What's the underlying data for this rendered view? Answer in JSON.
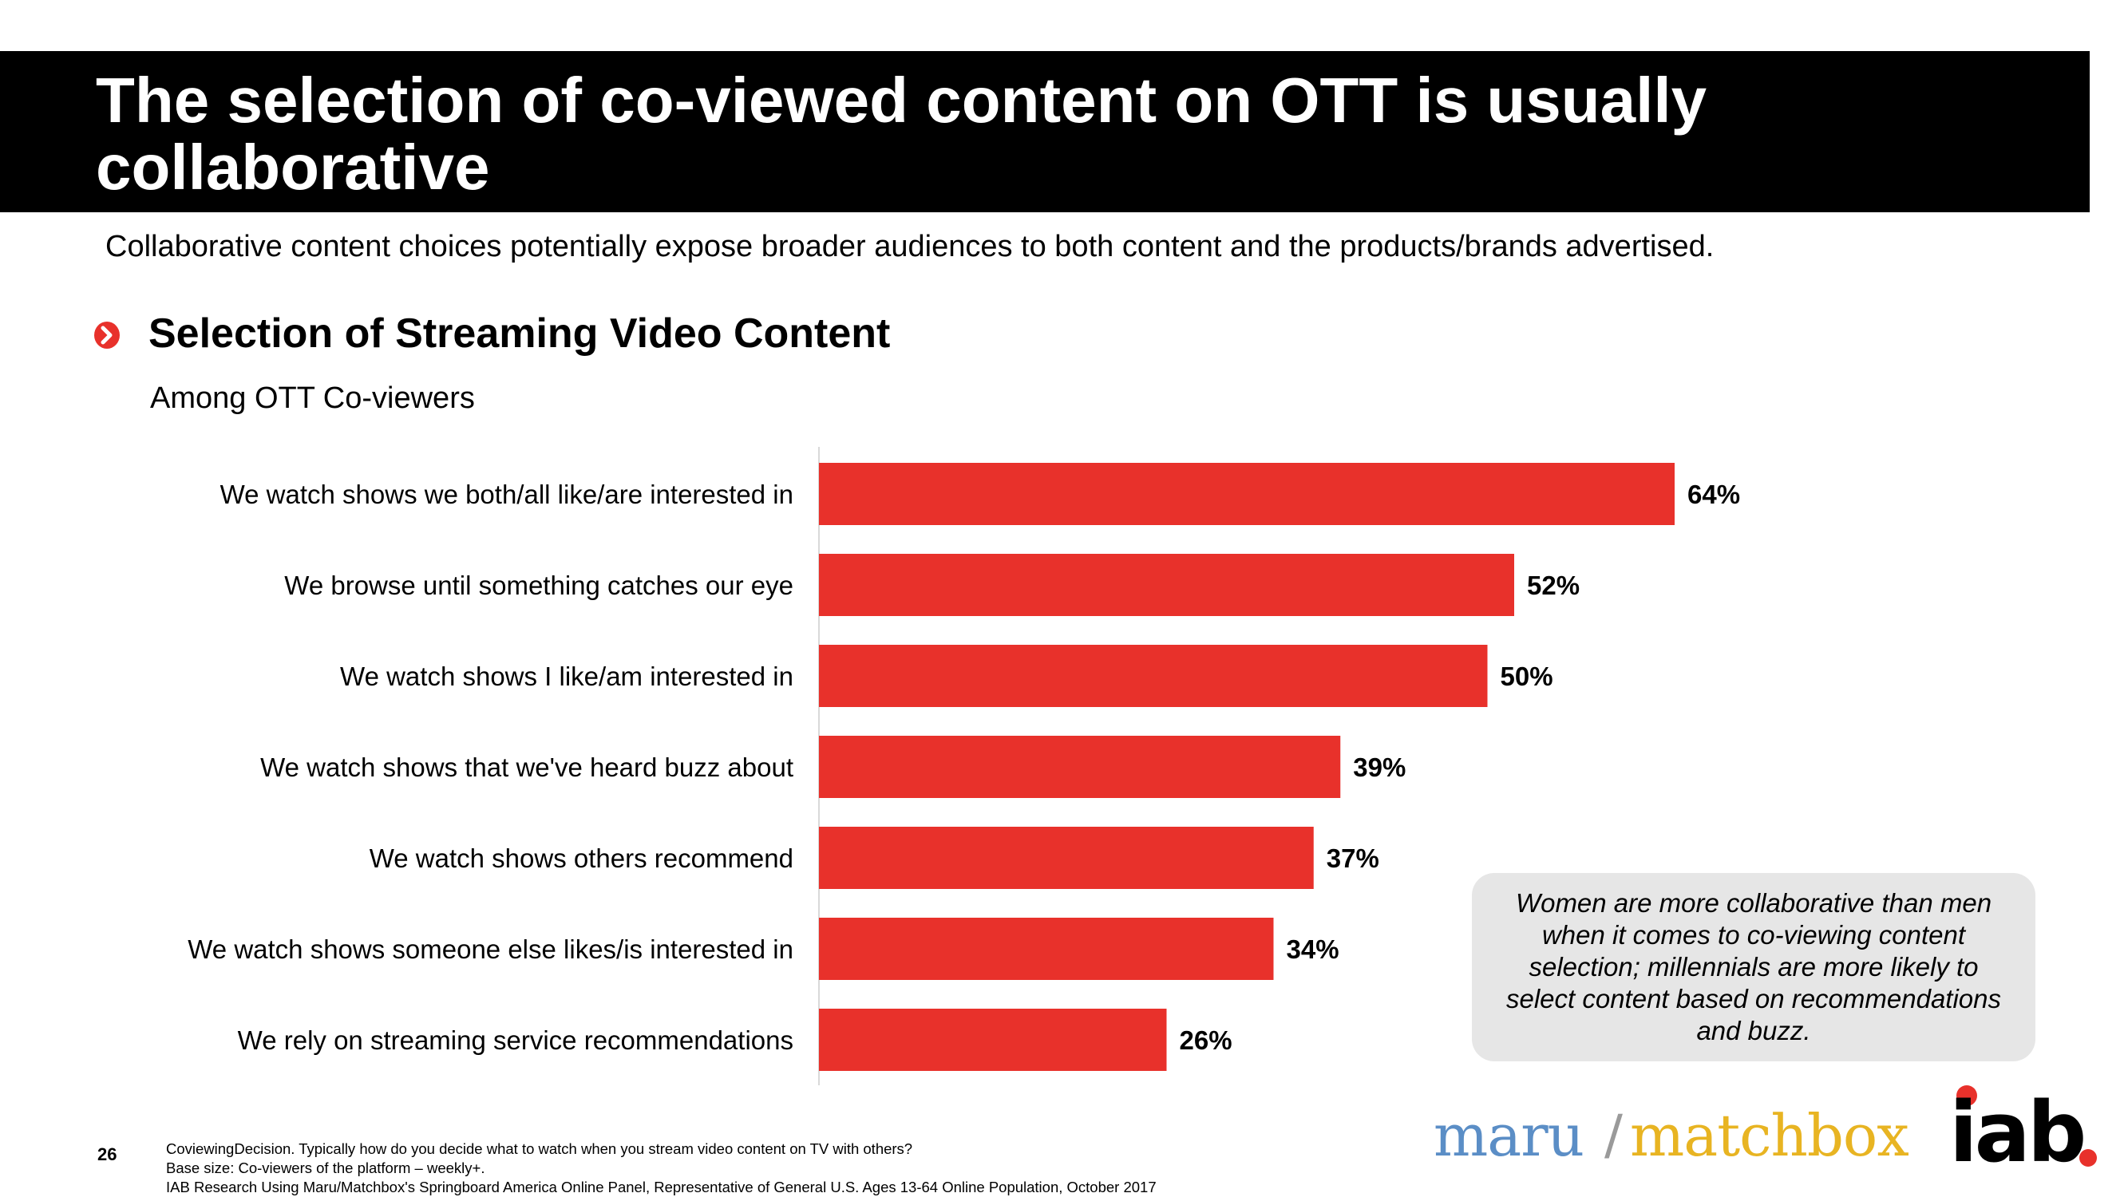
{
  "header": {
    "title": "The selection of co-viewed content on OTT is usually collaborative",
    "subtitle": "Collaborative content choices potentially expose broader audiences to both content and the products/brands advertised."
  },
  "section": {
    "icon": "chevron-right-icon",
    "title": "Selection of Streaming Video Content",
    "subtitle": "Among OTT Co-viewers"
  },
  "chart_data": {
    "type": "bar",
    "orientation": "horizontal",
    "title": "Selection of Streaming Video Content",
    "subtitle": "Among OTT Co-viewers",
    "categories": [
      "We watch shows we both/all like/are interested in",
      "We browse until something catches our eye",
      "We watch shows I like/am interested in",
      "We watch shows that we've heard buzz about",
      "We watch shows others recommend",
      "We watch shows someone else likes/is interested in",
      "We rely on streaming service recommendations"
    ],
    "values": [
      64,
      52,
      50,
      39,
      37,
      34,
      26
    ],
    "value_labels": [
      "64%",
      "52%",
      "50%",
      "39%",
      "37%",
      "34%",
      "26%"
    ],
    "unit": "%",
    "xlim": [
      0,
      100
    ],
    "bar_color": "#e8312b",
    "grid": false,
    "xlabel": "",
    "ylabel": ""
  },
  "callout": {
    "text": "Women are more collaborative than men when it comes to co-viewing content selection; millennials are more likely to select content based on recommendations and buzz."
  },
  "footer": {
    "page_number": "26",
    "question": "CoviewingDecision. Typically how do you decide what to watch when you stream video content on TV with others?",
    "base": "Base size: Co-viewers of the platform – weekly+.",
    "source": "IAB Research Using Maru/Matchbox's Springboard America Online Panel, Representative of General U.S. Ages 13-64 Online Population, October 2017"
  },
  "logos": {
    "maru": "maru",
    "slash": "/",
    "matchbox": "matchbox",
    "iab": "iab."
  },
  "colors": {
    "title_bg": "#000000",
    "accent": "#e8312b",
    "callout_bg": "#e6e6e6",
    "maru_blue": "#5b8ec6",
    "matchbox_gold": "#e8b422"
  }
}
